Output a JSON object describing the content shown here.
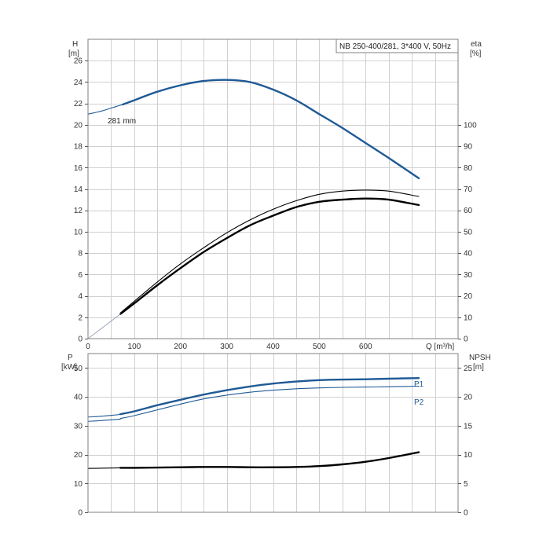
{
  "chart_data": [
    {
      "type": "line",
      "title": "NB 250-400/281, 3*400 V, 50Hz",
      "xlabel": "Q [m³/h]",
      "ylabel_line1": "H",
      "ylabel_line2": "[m]",
      "y2label_line1": "eta",
      "y2label_line2": "[%]",
      "xlim": [
        0,
        800
      ],
      "ylim": [
        0,
        28
      ],
      "y2lim": [
        0,
        140
      ],
      "x_ticks": [
        0,
        100,
        200,
        300,
        400,
        500,
        600
      ],
      "y_ticks": [
        0,
        2,
        4,
        6,
        8,
        10,
        12,
        14,
        16,
        18,
        20,
        22,
        24,
        26
      ],
      "y2_ticks": [
        0,
        10,
        20,
        30,
        40,
        50,
        60,
        70,
        80,
        90,
        100
      ],
      "grid": true,
      "colors": {
        "head": "#1f5a96",
        "eta": "#000000",
        "reference": "#9aa4b8"
      },
      "annotation": "281 mm",
      "series": [
        {
          "key": "head_extension",
          "axis": "left",
          "style": "thin-blue",
          "x": [
            0,
            30,
            60,
            75
          ],
          "y": [
            21.0,
            21.3,
            21.7,
            21.9
          ]
        },
        {
          "key": "head",
          "axis": "left",
          "style": "thick-blue",
          "x": [
            75,
            100,
            150,
            200,
            250,
            300,
            350,
            400,
            450,
            500,
            550,
            600,
            650,
            715
          ],
          "y": [
            21.9,
            22.3,
            23.1,
            23.7,
            24.1,
            24.2,
            24.0,
            23.3,
            22.3,
            21.0,
            19.7,
            18.3,
            16.9,
            15.0
          ]
        },
        {
          "key": "eta_upper",
          "axis": "right",
          "style": "thin-black",
          "x": [
            70,
            100,
            150,
            200,
            250,
            300,
            350,
            400,
            450,
            500,
            550,
            600,
            650,
            715
          ],
          "y": [
            12,
            17.5,
            26.5,
            35,
            42.5,
            49.5,
            55.5,
            60.5,
            64.5,
            67.5,
            69,
            69.5,
            69,
            66.5
          ]
        },
        {
          "key": "eta_lower",
          "axis": "right",
          "style": "thick-black",
          "x": [
            70,
            100,
            150,
            200,
            250,
            300,
            350,
            400,
            450,
            500,
            550,
            600,
            650,
            715
          ],
          "y": [
            11.5,
            16.5,
            25,
            33,
            40.5,
            47,
            53,
            57.5,
            61.5,
            64,
            65,
            65.5,
            65,
            62.5
          ]
        },
        {
          "key": "eta_extension",
          "axis": "right",
          "style": "thin-gray",
          "x": [
            0,
            70
          ],
          "y": [
            0,
            11.5
          ]
        }
      ]
    },
    {
      "type": "line",
      "ylabel_line1": "P",
      "ylabel_line2": "[kW]",
      "y2label_line1": "NPSH",
      "y2label_line2": "[m]",
      "xlim": [
        0,
        800
      ],
      "ylim": [
        0,
        55
      ],
      "y2lim": [
        0,
        27.5
      ],
      "y_ticks": [
        0,
        10,
        20,
        30,
        40,
        50
      ],
      "y2_ticks": [
        0,
        5,
        10,
        15,
        20,
        25
      ],
      "grid": true,
      "series": [
        {
          "key": "p1_extension",
          "axis": "left",
          "style": "thin-blue",
          "x": [
            0,
            30,
            70
          ],
          "y": [
            33.0,
            33.3,
            33.9
          ]
        },
        {
          "name": "P1",
          "key": "p1",
          "axis": "left",
          "style": "thick-blue",
          "x": [
            70,
            100,
            150,
            200,
            250,
            300,
            350,
            400,
            450,
            500,
            550,
            600,
            650,
            715
          ],
          "y": [
            34.0,
            35.0,
            37.1,
            39.0,
            40.8,
            42.3,
            43.6,
            44.6,
            45.3,
            45.8,
            46.0,
            46.1,
            46.3,
            46.5
          ]
        },
        {
          "key": "p2_extension",
          "axis": "left",
          "style": "thin-blue",
          "x": [
            0,
            30,
            70
          ],
          "y": [
            31.5,
            31.8,
            32.3
          ]
        },
        {
          "name": "P2",
          "key": "p2",
          "axis": "left",
          "style": "thin-blue",
          "x": [
            70,
            100,
            150,
            200,
            250,
            300,
            350,
            400,
            450,
            500,
            550,
            600,
            650,
            715
          ],
          "y": [
            32.5,
            33.5,
            35.5,
            37.5,
            39.3,
            40.6,
            41.6,
            42.3,
            42.8,
            43.1,
            43.3,
            43.4,
            43.5,
            43.7
          ]
        },
        {
          "key": "npsh_extension",
          "axis": "right",
          "style": "thin-black",
          "x": [
            0,
            70
          ],
          "y": [
            7.6,
            7.7
          ]
        },
        {
          "key": "npsh",
          "axis": "right",
          "style": "thick-black",
          "x": [
            70,
            100,
            150,
            200,
            250,
            300,
            350,
            400,
            450,
            500,
            550,
            600,
            650,
            715
          ],
          "y": [
            7.7,
            7.7,
            7.75,
            7.8,
            7.85,
            7.85,
            7.8,
            7.8,
            7.85,
            8.0,
            8.3,
            8.75,
            9.4,
            10.4
          ]
        }
      ]
    }
  ]
}
